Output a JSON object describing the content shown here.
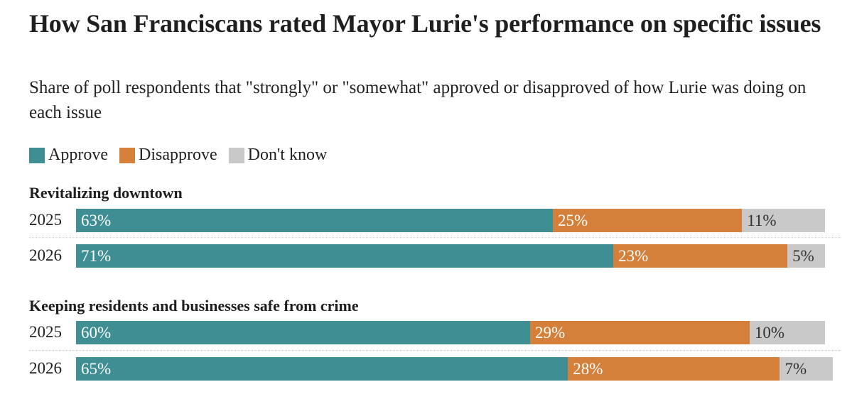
{
  "title": "How San Franciscans rated Mayor Lurie's performance on specific issues",
  "subtitle": "Share of poll respondents that \"strongly\" or \"somewhat\" approved or disapproved of how Lurie was doing on each issue",
  "legend": [
    {
      "label": "Approve",
      "color": "#3f8e93"
    },
    {
      "label": "Disapprove",
      "color": "#d4803a"
    },
    {
      "label": "Don't know",
      "color": "#c9c9c9"
    }
  ],
  "chart_data": {
    "type": "bar",
    "stacked": true,
    "orientation": "horizontal",
    "groups": [
      {
        "name": "Revitalizing downtown",
        "rows": [
          {
            "year": "2025",
            "values": [
              63,
              25,
              11
            ],
            "labels": [
              "63%",
              "25%",
              "11%"
            ]
          },
          {
            "year": "2026",
            "values": [
              71,
              23,
              5
            ],
            "labels": [
              "71%",
              "23%",
              "5%"
            ]
          }
        ]
      },
      {
        "name": "Keeping residents and businesses safe from crime",
        "rows": [
          {
            "year": "2025",
            "values": [
              60,
              29,
              10
            ],
            "labels": [
              "60%",
              "29%",
              "10%"
            ]
          },
          {
            "year": "2026",
            "values": [
              65,
              28,
              7
            ],
            "labels": [
              "65%",
              "28%",
              "7%"
            ]
          }
        ]
      }
    ],
    "series": [
      "Approve",
      "Disapprove",
      "Don't know"
    ],
    "colors": [
      "#3f8e93",
      "#d4803a",
      "#c9c9c9"
    ],
    "label_colors": [
      "#ffffff",
      "#ffffff",
      "#333333"
    ]
  }
}
